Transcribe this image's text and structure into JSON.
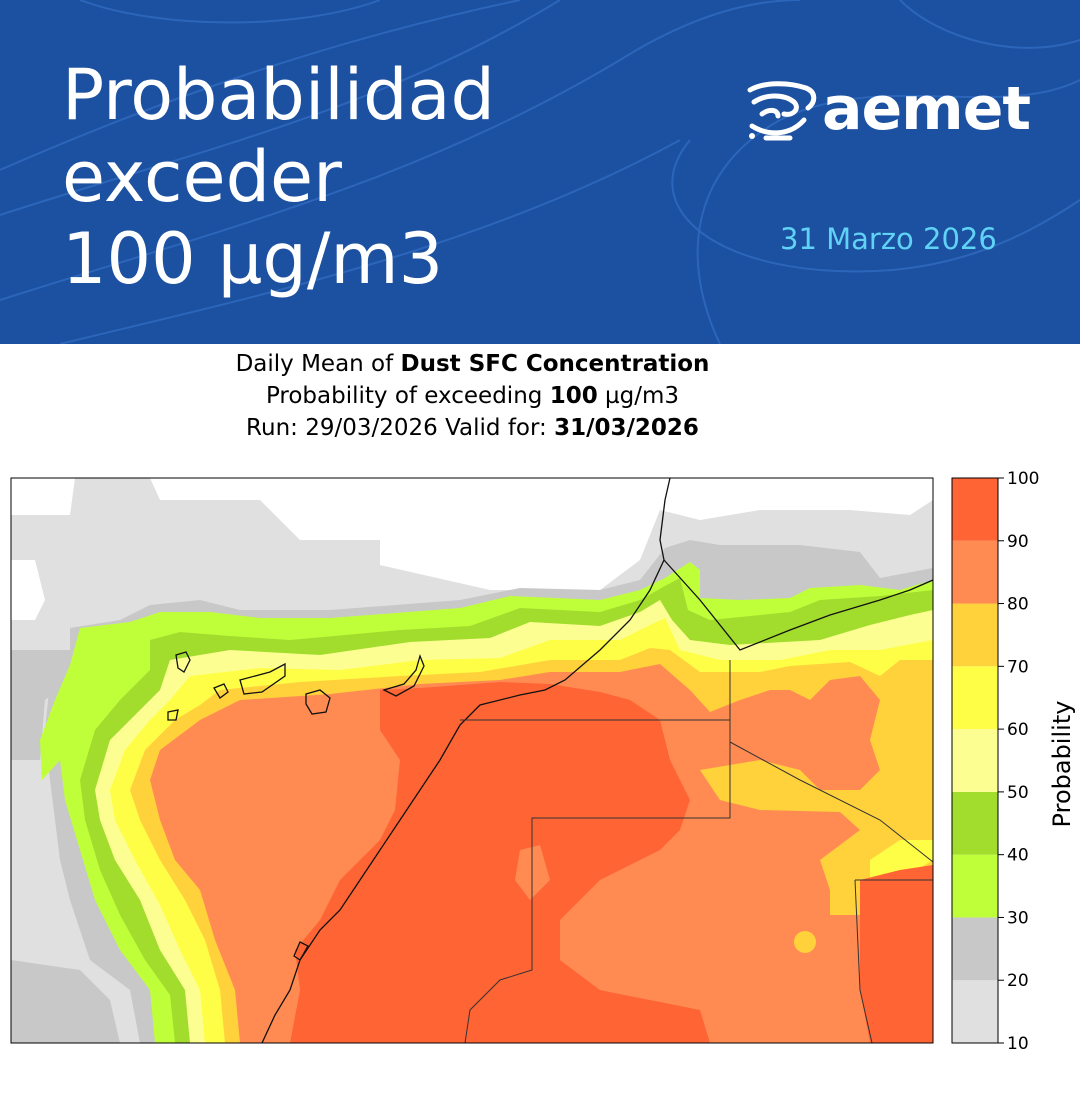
{
  "banner": {
    "title_lines": [
      "Probabilidad",
      "exceder",
      "100 µg/m3"
    ],
    "logo_text": "aemet",
    "logo_icon": "aemet-logo-icon",
    "date": "31 Marzo 2026",
    "bg_color": "#1c50a0",
    "date_color": "#5fd2f5"
  },
  "map": {
    "title": {
      "line1_prefix": "Daily Mean of ",
      "line1_bold": "Dust SFC Concentration",
      "line2_prefix": "Probability of exceeding ",
      "line2_bold": "100",
      "line2_suffix": " µg/m3",
      "line3_prefix": "Run: 29/03/2026 Valid for: ",
      "line3_bold": "31/03/2026"
    },
    "colorbar": {
      "label": "Probability",
      "ticks": [
        "10",
        "20",
        "30",
        "40",
        "50",
        "60",
        "70",
        "80",
        "90",
        "100"
      ],
      "levels": [
        {
          "from": 10,
          "to": 20,
          "color": "#e0e0e0"
        },
        {
          "from": 20,
          "to": 30,
          "color": "#c8c8c8"
        },
        {
          "from": 30,
          "to": 40,
          "color": "#bfff3a"
        },
        {
          "from": 40,
          "to": 50,
          "color": "#a2dd2e"
        },
        {
          "from": 50,
          "to": 60,
          "color": "#fdfe92"
        },
        {
          "from": 60,
          "to": 70,
          "color": "#fefe46"
        },
        {
          "from": 70,
          "to": 80,
          "color": "#ffd23c"
        },
        {
          "from": 80,
          "to": 90,
          "color": "#ff8b53"
        },
        {
          "from": 90,
          "to": 100,
          "color": "#ff6434"
        }
      ]
    }
  }
}
